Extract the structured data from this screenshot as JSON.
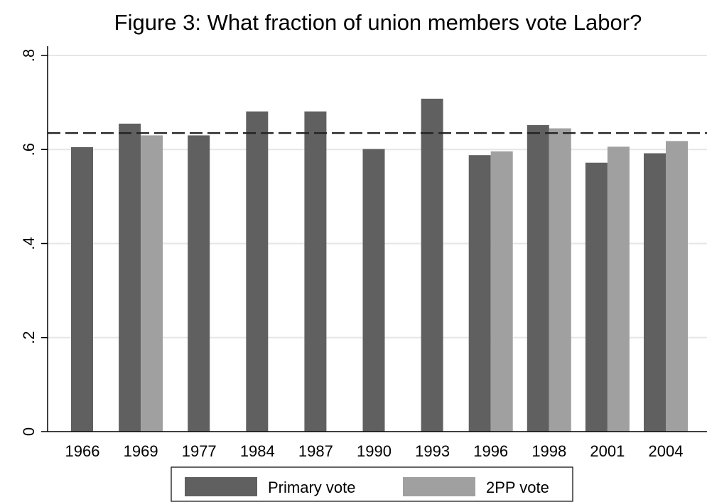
{
  "chart_data": {
    "type": "bar",
    "title": "Figure 3: What fraction of union members vote Labor?",
    "xlabel": "",
    "ylabel": "",
    "categories": [
      "1966",
      "1969",
      "1977",
      "1984",
      "1987",
      "1990",
      "1993",
      "1996",
      "1998",
      "2001",
      "2004"
    ],
    "series": [
      {
        "name": "Primary vote",
        "color": "#606060",
        "values": [
          0.605,
          0.655,
          0.63,
          0.681,
          0.681,
          0.601,
          0.708,
          0.588,
          0.652,
          0.572,
          0.592
        ]
      },
      {
        "name": "2PP vote",
        "color": "#a0a0a0",
        "values": [
          null,
          0.63,
          null,
          null,
          null,
          null,
          null,
          0.596,
          0.645,
          0.606,
          0.618
        ]
      }
    ],
    "reference_line": {
      "value": 0.635,
      "style": "dashed"
    },
    "ylim": [
      0,
      0.8
    ],
    "yticks": [
      0,
      0.2,
      0.4,
      0.6,
      0.8
    ],
    "ytick_labels": [
      "0",
      ".2",
      ".4",
      ".6",
      ".8"
    ],
    "grid": true,
    "legend_position": "bottom"
  }
}
